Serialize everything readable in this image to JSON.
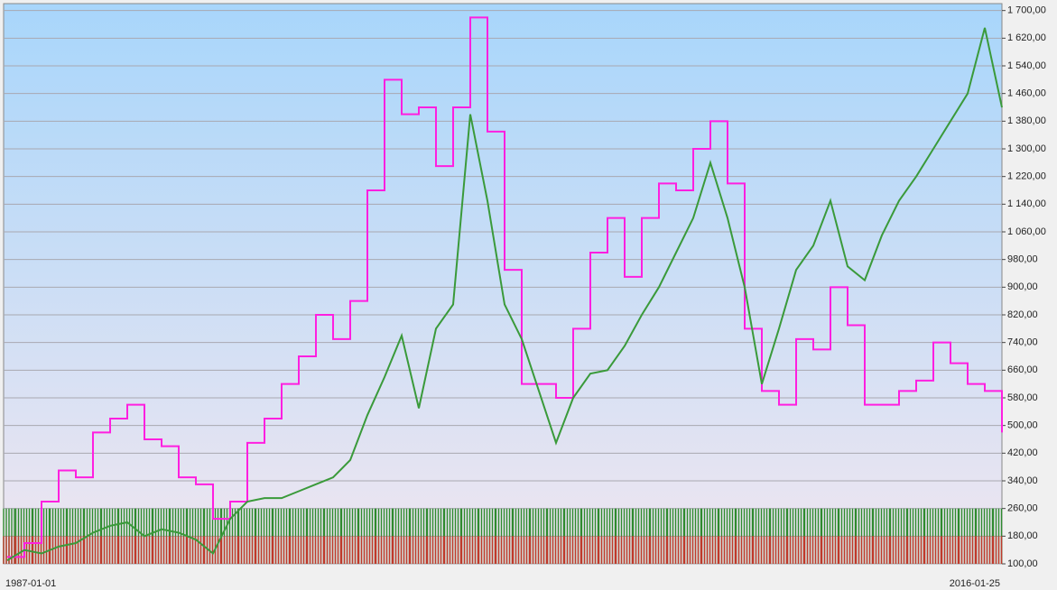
{
  "chart_data": {
    "type": "line",
    "categories": [
      "1987-01-01",
      null,
      null,
      null,
      null,
      null,
      null,
      null,
      null,
      null,
      null,
      null,
      null,
      null,
      null,
      null,
      null,
      null,
      null,
      null,
      null,
      null,
      null,
      null,
      null,
      null,
      null,
      null,
      null,
      null,
      null,
      null,
      null,
      null,
      null,
      null,
      null,
      null,
      null,
      null,
      null,
      null,
      null,
      null,
      null,
      null,
      null,
      null,
      null,
      null,
      null,
      null,
      null,
      null,
      null,
      null,
      null,
      null,
      "2016-01-25"
    ],
    "ylim": [
      100,
      1720
    ],
    "yticks": [
      {
        "value": 100,
        "label": "100,00"
      },
      {
        "value": 180,
        "label": "180,00"
      },
      {
        "value": 260,
        "label": "260,00"
      },
      {
        "value": 340,
        "label": "340,00"
      },
      {
        "value": 420,
        "label": "420,00"
      },
      {
        "value": 500,
        "label": "500,00"
      },
      {
        "value": 580,
        "label": "580,00"
      },
      {
        "value": 660,
        "label": "660,00"
      },
      {
        "value": 740,
        "label": "740,00"
      },
      {
        "value": 820,
        "label": "820,00"
      },
      {
        "value": 900,
        "label": "900,00"
      },
      {
        "value": 980,
        "label": "980,00"
      },
      {
        "value": 1060,
        "label": "1 060,00"
      },
      {
        "value": 1140,
        "label": "1 140,00"
      },
      {
        "value": 1220,
        "label": "1 220,00"
      },
      {
        "value": 1300,
        "label": "1 300,00"
      },
      {
        "value": 1380,
        "label": "1 380,00"
      },
      {
        "value": 1460,
        "label": "1 460,00"
      },
      {
        "value": 1540,
        "label": "1 540,00"
      },
      {
        "value": 1620,
        "label": "1 620,00"
      },
      {
        "value": 1700,
        "label": "1 700,00"
      }
    ],
    "grid": true,
    "series": [
      {
        "type": "bar",
        "color": "#2e8b2e",
        "values": [
          260,
          260,
          260,
          260,
          260,
          260,
          260,
          260,
          260,
          260,
          260,
          260,
          260,
          260,
          260,
          260,
          260,
          260,
          260,
          260,
          260,
          260,
          260,
          260,
          260,
          260,
          260,
          260,
          260,
          260,
          260,
          260,
          260,
          260,
          260,
          260,
          260,
          260,
          260,
          260,
          260,
          260,
          260,
          260,
          260,
          260,
          260,
          260,
          260,
          260,
          260,
          260,
          260,
          260,
          260,
          260,
          260,
          260,
          260
        ]
      },
      {
        "type": "bar",
        "color": "#c0392b",
        "values": [
          180,
          180,
          180,
          180,
          180,
          180,
          180,
          180,
          180,
          180,
          180,
          180,
          180,
          180,
          180,
          180,
          180,
          180,
          180,
          180,
          180,
          180,
          180,
          180,
          180,
          180,
          180,
          180,
          180,
          180,
          180,
          180,
          180,
          180,
          180,
          180,
          180,
          180,
          180,
          180,
          180,
          180,
          180,
          180,
          180,
          180,
          180,
          180,
          180,
          180,
          180,
          180,
          180,
          180,
          180,
          180,
          180,
          180,
          180
        ]
      },
      {
        "type": "step",
        "color": "#ff1fe0",
        "values": [
          120,
          160,
          280,
          370,
          350,
          480,
          520,
          560,
          460,
          440,
          350,
          330,
          230,
          280,
          450,
          520,
          620,
          700,
          820,
          750,
          860,
          1180,
          1500,
          1400,
          1420,
          1250,
          1420,
          1680,
          1350,
          950,
          620,
          620,
          580,
          780,
          1000,
          1100,
          930,
          1100,
          1200,
          1180,
          1300,
          1380,
          1200,
          780,
          600,
          560,
          750,
          720,
          900,
          790,
          560,
          560,
          600,
          630,
          740,
          680,
          620,
          600,
          480
        ]
      },
      {
        "type": "line",
        "color": "#3a9a3a",
        "values": [
          110,
          140,
          130,
          150,
          160,
          190,
          210,
          220,
          180,
          200,
          190,
          170,
          130,
          230,
          280,
          290,
          290,
          310,
          330,
          350,
          400,
          530,
          640,
          760,
          550,
          780,
          850,
          1400,
          1150,
          850,
          750,
          600,
          450,
          580,
          650,
          660,
          730,
          820,
          900,
          1000,
          1100,
          1260,
          1100,
          900,
          620,
          780,
          950,
          1020,
          1150,
          960,
          920,
          1050,
          1150,
          1220,
          1300,
          1380,
          1460,
          1650,
          1420
        ]
      }
    ]
  }
}
